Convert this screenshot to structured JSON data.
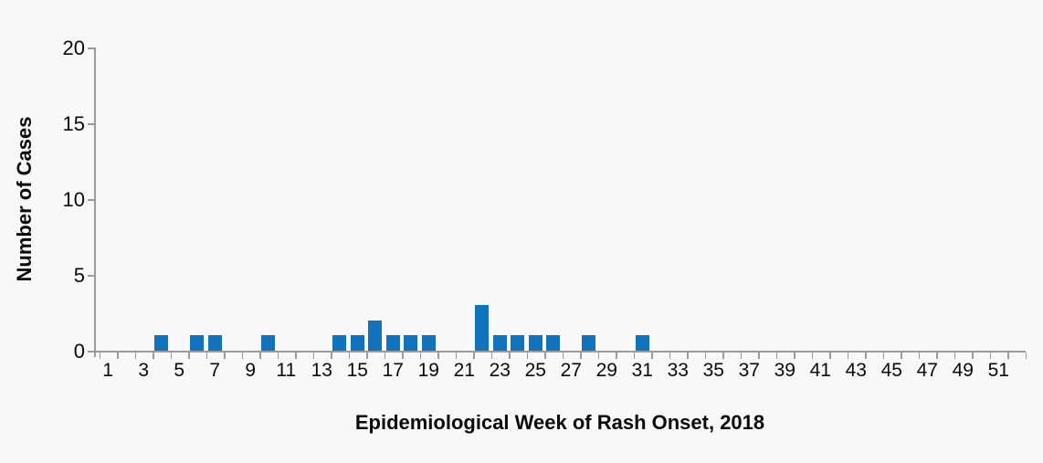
{
  "page": {
    "background": "#f8f8f8"
  },
  "chart_data": {
    "type": "bar",
    "title": "",
    "xlabel": "Epidemiological Week of Rash Onset, 2018",
    "ylabel": "Number of Cases",
    "categories": [
      1,
      2,
      3,
      4,
      5,
      6,
      7,
      8,
      9,
      10,
      11,
      12,
      13,
      14,
      15,
      16,
      17,
      18,
      19,
      20,
      21,
      22,
      23,
      24,
      25,
      26,
      27,
      28,
      29,
      30,
      31,
      32,
      33,
      34,
      35,
      36,
      37,
      38,
      39,
      40,
      41,
      42,
      43,
      44,
      45,
      46,
      47,
      48,
      49,
      50,
      51,
      52
    ],
    "values": [
      0,
      0,
      0,
      1,
      0,
      1,
      1,
      0,
      0,
      1,
      0,
      0,
      0,
      1,
      1,
      2,
      1,
      1,
      1,
      0,
      0,
      3,
      1,
      1,
      1,
      1,
      0,
      1,
      0,
      0,
      1,
      0,
      0,
      0,
      0,
      0,
      0,
      0,
      0,
      0,
      0,
      0,
      0,
      0,
      0,
      0,
      0,
      0,
      0,
      0,
      0,
      0
    ],
    "x_tick_labels": [
      "1",
      "3",
      "5",
      "7",
      "9",
      "11",
      "13",
      "15",
      "17",
      "19",
      "21",
      "23",
      "25",
      "27",
      "29",
      "31",
      "33",
      "35",
      "37",
      "39",
      "41",
      "43",
      "45",
      "47",
      "49",
      "51"
    ],
    "y_ticks": [
      "0",
      "5",
      "10",
      "15",
      "20"
    ],
    "y_tick_values": [
      0,
      5,
      10,
      15,
      20
    ],
    "ylim": [
      0,
      20
    ],
    "grid": false,
    "legend": null,
    "bar_color": "#1273BD",
    "axis_color": "#9a9a9a",
    "text_color": "#0a0a0a"
  }
}
